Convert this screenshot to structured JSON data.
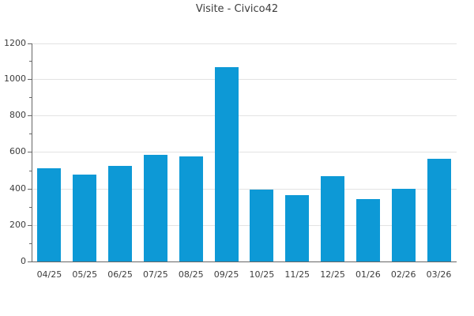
{
  "title": "Visite - Civico42",
  "chart_data": {
    "type": "bar",
    "title": "Visite - Civico42",
    "categories": [
      "04/25",
      "05/25",
      "06/25",
      "07/25",
      "08/25",
      "09/25",
      "10/25",
      "11/25",
      "12/25",
      "01/26",
      "02/26",
      "03/26"
    ],
    "values": [
      515,
      483,
      530,
      588,
      580,
      1070,
      400,
      370,
      473,
      348,
      405,
      568
    ],
    "xlabel": "",
    "ylabel": "",
    "ylim": [
      0,
      1200
    ],
    "ytick_step": 200,
    "yminor_step": 100,
    "ytick_labels": [
      "0",
      "200",
      "400",
      "600",
      "800",
      "1000",
      "1200"
    ],
    "grid": true,
    "legend": "none",
    "colors": {
      "bar": "#0d99d6",
      "grid": "#e3e3e3",
      "axis": "#666666",
      "text": "#3d3d3d"
    }
  }
}
